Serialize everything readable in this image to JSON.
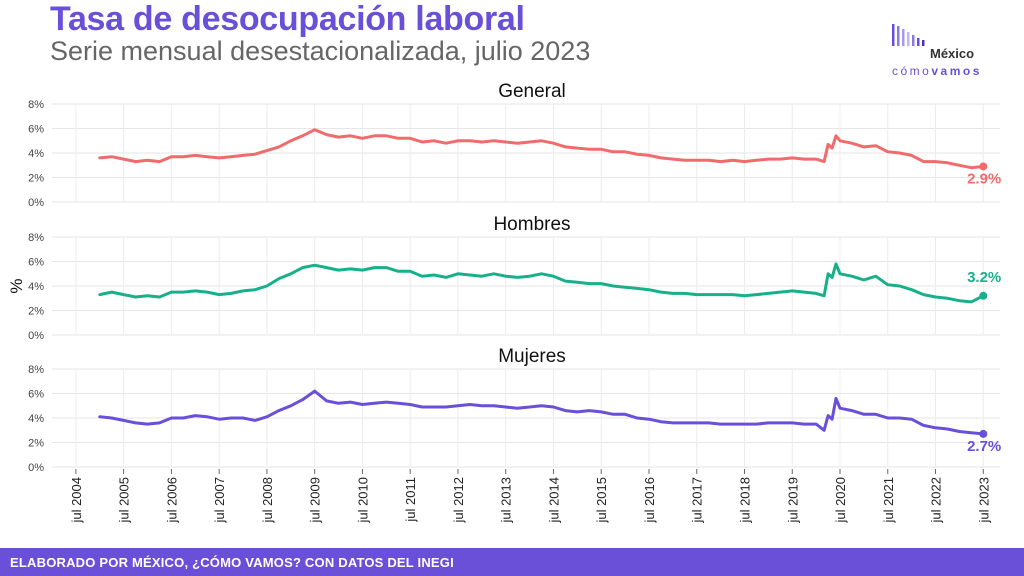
{
  "header": {
    "title": "Tasa de desocupación laboral",
    "subtitle": "Serie mensual desestacionalizada, julio 2023"
  },
  "logo": {
    "line1": "México",
    "line2a": "cómo",
    "line2b": "vamos"
  },
  "footer": {
    "text": "ELABORADO POR MÉXICO, ¿CÓMO VAMOS? CON DATOS DEL INEGI"
  },
  "chart_data": {
    "type": "line",
    "ylabel": "%",
    "x_ticks": [
      "jul 2004",
      "jul 2005",
      "jul 2006",
      "jul 2007",
      "jul 2008",
      "jul 2009",
      "jul 2010",
      "jul 2011",
      "jul 2012",
      "jul 2013",
      "jul 2014",
      "jul 2015",
      "jul 2016",
      "jul 2017",
      "jul 2018",
      "jul 2019",
      "jul 2020",
      "jul 2021",
      "jul 2022",
      "jul 2023"
    ],
    "y_ticks": [
      "0%",
      "2%",
      "4%",
      "6%",
      "8%"
    ],
    "ylim": [
      0,
      8
    ],
    "grid": true,
    "panels": [
      {
        "name": "General",
        "color": "#f06b6b",
        "end_label": "2.9%",
        "points": [
          [
            "2005-01",
            3.6
          ],
          [
            "2005-04",
            3.7
          ],
          [
            "2005-07",
            3.5
          ],
          [
            "2005-10",
            3.3
          ],
          [
            "2006-01",
            3.4
          ],
          [
            "2006-04",
            3.3
          ],
          [
            "2006-07",
            3.7
          ],
          [
            "2006-10",
            3.7
          ],
          [
            "2007-01",
            3.8
          ],
          [
            "2007-04",
            3.7
          ],
          [
            "2007-07",
            3.6
          ],
          [
            "2007-10",
            3.7
          ],
          [
            "2008-01",
            3.8
          ],
          [
            "2008-04",
            3.9
          ],
          [
            "2008-07",
            4.2
          ],
          [
            "2008-10",
            4.5
          ],
          [
            "2009-01",
            5.0
          ],
          [
            "2009-04",
            5.4
          ],
          [
            "2009-07",
            5.9
          ],
          [
            "2009-10",
            5.5
          ],
          [
            "2010-01",
            5.3
          ],
          [
            "2010-04",
            5.4
          ],
          [
            "2010-07",
            5.2
          ],
          [
            "2010-10",
            5.4
          ],
          [
            "2011-01",
            5.4
          ],
          [
            "2011-04",
            5.2
          ],
          [
            "2011-07",
            5.2
          ],
          [
            "2011-10",
            4.9
          ],
          [
            "2012-01",
            5.0
          ],
          [
            "2012-04",
            4.8
          ],
          [
            "2012-07",
            5.0
          ],
          [
            "2012-10",
            5.0
          ],
          [
            "2013-01",
            4.9
          ],
          [
            "2013-04",
            5.0
          ],
          [
            "2013-07",
            4.9
          ],
          [
            "2013-10",
            4.8
          ],
          [
            "2014-01",
            4.9
          ],
          [
            "2014-04",
            5.0
          ],
          [
            "2014-07",
            4.8
          ],
          [
            "2014-10",
            4.5
          ],
          [
            "2015-01",
            4.4
          ],
          [
            "2015-04",
            4.3
          ],
          [
            "2015-07",
            4.3
          ],
          [
            "2015-10",
            4.1
          ],
          [
            "2016-01",
            4.1
          ],
          [
            "2016-04",
            3.9
          ],
          [
            "2016-07",
            3.8
          ],
          [
            "2016-10",
            3.6
          ],
          [
            "2017-01",
            3.5
          ],
          [
            "2017-04",
            3.4
          ],
          [
            "2017-07",
            3.4
          ],
          [
            "2017-10",
            3.4
          ],
          [
            "2018-01",
            3.3
          ],
          [
            "2018-04",
            3.4
          ],
          [
            "2018-07",
            3.3
          ],
          [
            "2018-10",
            3.4
          ],
          [
            "2019-01",
            3.5
          ],
          [
            "2019-04",
            3.5
          ],
          [
            "2019-07",
            3.6
          ],
          [
            "2019-10",
            3.5
          ],
          [
            "2020-01",
            3.5
          ],
          [
            "2020-03",
            3.3
          ],
          [
            "2020-04",
            4.7
          ],
          [
            "2020-05",
            4.4
          ],
          [
            "2020-06",
            5.4
          ],
          [
            "2020-07",
            5.0
          ],
          [
            "2020-10",
            4.8
          ],
          [
            "2021-01",
            4.5
          ],
          [
            "2021-04",
            4.6
          ],
          [
            "2021-07",
            4.1
          ],
          [
            "2021-10",
            4.0
          ],
          [
            "2022-01",
            3.8
          ],
          [
            "2022-04",
            3.3
          ],
          [
            "2022-07",
            3.3
          ],
          [
            "2022-10",
            3.2
          ],
          [
            "2023-01",
            3.0
          ],
          [
            "2023-04",
            2.8
          ],
          [
            "2023-07",
            2.9
          ]
        ]
      },
      {
        "name": "Hombres",
        "color": "#17b08a",
        "end_label": "3.2%",
        "points": [
          [
            "2005-01",
            3.3
          ],
          [
            "2005-04",
            3.5
          ],
          [
            "2005-07",
            3.3
          ],
          [
            "2005-10",
            3.1
          ],
          [
            "2006-01",
            3.2
          ],
          [
            "2006-04",
            3.1
          ],
          [
            "2006-07",
            3.5
          ],
          [
            "2006-10",
            3.5
          ],
          [
            "2007-01",
            3.6
          ],
          [
            "2007-04",
            3.5
          ],
          [
            "2007-07",
            3.3
          ],
          [
            "2007-10",
            3.4
          ],
          [
            "2008-01",
            3.6
          ],
          [
            "2008-04",
            3.7
          ],
          [
            "2008-07",
            4.0
          ],
          [
            "2008-10",
            4.6
          ],
          [
            "2009-01",
            5.0
          ],
          [
            "2009-04",
            5.5
          ],
          [
            "2009-07",
            5.7
          ],
          [
            "2009-10",
            5.5
          ],
          [
            "2010-01",
            5.3
          ],
          [
            "2010-04",
            5.4
          ],
          [
            "2010-07",
            5.3
          ],
          [
            "2010-10",
            5.5
          ],
          [
            "2011-01",
            5.5
          ],
          [
            "2011-04",
            5.2
          ],
          [
            "2011-07",
            5.2
          ],
          [
            "2011-10",
            4.8
          ],
          [
            "2012-01",
            4.9
          ],
          [
            "2012-04",
            4.7
          ],
          [
            "2012-07",
            5.0
          ],
          [
            "2012-10",
            4.9
          ],
          [
            "2013-01",
            4.8
          ],
          [
            "2013-04",
            5.0
          ],
          [
            "2013-07",
            4.8
          ],
          [
            "2013-10",
            4.7
          ],
          [
            "2014-01",
            4.8
          ],
          [
            "2014-04",
            5.0
          ],
          [
            "2014-07",
            4.8
          ],
          [
            "2014-10",
            4.4
          ],
          [
            "2015-01",
            4.3
          ],
          [
            "2015-04",
            4.2
          ],
          [
            "2015-07",
            4.2
          ],
          [
            "2015-10",
            4.0
          ],
          [
            "2016-01",
            3.9
          ],
          [
            "2016-04",
            3.8
          ],
          [
            "2016-07",
            3.7
          ],
          [
            "2016-10",
            3.5
          ],
          [
            "2017-01",
            3.4
          ],
          [
            "2017-04",
            3.4
          ],
          [
            "2017-07",
            3.3
          ],
          [
            "2017-10",
            3.3
          ],
          [
            "2018-01",
            3.3
          ],
          [
            "2018-04",
            3.3
          ],
          [
            "2018-07",
            3.2
          ],
          [
            "2018-10",
            3.3
          ],
          [
            "2019-01",
            3.4
          ],
          [
            "2019-04",
            3.5
          ],
          [
            "2019-07",
            3.6
          ],
          [
            "2019-10",
            3.5
          ],
          [
            "2020-01",
            3.4
          ],
          [
            "2020-03",
            3.2
          ],
          [
            "2020-04",
            5.0
          ],
          [
            "2020-05",
            4.7
          ],
          [
            "2020-06",
            5.8
          ],
          [
            "2020-07",
            5.0
          ],
          [
            "2020-10",
            4.8
          ],
          [
            "2021-01",
            4.5
          ],
          [
            "2021-04",
            4.8
          ],
          [
            "2021-07",
            4.1
          ],
          [
            "2021-10",
            4.0
          ],
          [
            "2022-01",
            3.7
          ],
          [
            "2022-04",
            3.3
          ],
          [
            "2022-07",
            3.1
          ],
          [
            "2022-10",
            3.0
          ],
          [
            "2023-01",
            2.8
          ],
          [
            "2023-04",
            2.7
          ],
          [
            "2023-07",
            3.2
          ]
        ]
      },
      {
        "name": "Mujeres",
        "color": "#6a4fd8",
        "end_label": "2.7%",
        "points": [
          [
            "2005-01",
            4.1
          ],
          [
            "2005-04",
            4.0
          ],
          [
            "2005-07",
            3.8
          ],
          [
            "2005-10",
            3.6
          ],
          [
            "2006-01",
            3.5
          ],
          [
            "2006-04",
            3.6
          ],
          [
            "2006-07",
            4.0
          ],
          [
            "2006-10",
            4.0
          ],
          [
            "2007-01",
            4.2
          ],
          [
            "2007-04",
            4.1
          ],
          [
            "2007-07",
            3.9
          ],
          [
            "2007-10",
            4.0
          ],
          [
            "2008-01",
            4.0
          ],
          [
            "2008-04",
            3.8
          ],
          [
            "2008-07",
            4.1
          ],
          [
            "2008-10",
            4.6
          ],
          [
            "2009-01",
            5.0
          ],
          [
            "2009-04",
            5.5
          ],
          [
            "2009-07",
            6.2
          ],
          [
            "2009-10",
            5.4
          ],
          [
            "2010-01",
            5.2
          ],
          [
            "2010-04",
            5.3
          ],
          [
            "2010-07",
            5.1
          ],
          [
            "2010-10",
            5.2
          ],
          [
            "2011-01",
            5.3
          ],
          [
            "2011-04",
            5.2
          ],
          [
            "2011-07",
            5.1
          ],
          [
            "2011-10",
            4.9
          ],
          [
            "2012-01",
            4.9
          ],
          [
            "2012-04",
            4.9
          ],
          [
            "2012-07",
            5.0
          ],
          [
            "2012-10",
            5.1
          ],
          [
            "2013-01",
            5.0
          ],
          [
            "2013-04",
            5.0
          ],
          [
            "2013-07",
            4.9
          ],
          [
            "2013-10",
            4.8
          ],
          [
            "2014-01",
            4.9
          ],
          [
            "2014-04",
            5.0
          ],
          [
            "2014-07",
            4.9
          ],
          [
            "2014-10",
            4.6
          ],
          [
            "2015-01",
            4.5
          ],
          [
            "2015-04",
            4.6
          ],
          [
            "2015-07",
            4.5
          ],
          [
            "2015-10",
            4.3
          ],
          [
            "2016-01",
            4.3
          ],
          [
            "2016-04",
            4.0
          ],
          [
            "2016-07",
            3.9
          ],
          [
            "2016-10",
            3.7
          ],
          [
            "2017-01",
            3.6
          ],
          [
            "2017-04",
            3.6
          ],
          [
            "2017-07",
            3.6
          ],
          [
            "2017-10",
            3.6
          ],
          [
            "2018-01",
            3.5
          ],
          [
            "2018-04",
            3.5
          ],
          [
            "2018-07",
            3.5
          ],
          [
            "2018-10",
            3.5
          ],
          [
            "2019-01",
            3.6
          ],
          [
            "2019-04",
            3.6
          ],
          [
            "2019-07",
            3.6
          ],
          [
            "2019-10",
            3.5
          ],
          [
            "2020-01",
            3.5
          ],
          [
            "2020-03",
            3.0
          ],
          [
            "2020-04",
            4.2
          ],
          [
            "2020-05",
            3.9
          ],
          [
            "2020-06",
            5.6
          ],
          [
            "2020-07",
            4.8
          ],
          [
            "2020-10",
            4.6
          ],
          [
            "2021-01",
            4.3
          ],
          [
            "2021-04",
            4.3
          ],
          [
            "2021-07",
            4.0
          ],
          [
            "2021-10",
            4.0
          ],
          [
            "2022-01",
            3.9
          ],
          [
            "2022-04",
            3.4
          ],
          [
            "2022-07",
            3.2
          ],
          [
            "2022-10",
            3.1
          ],
          [
            "2023-01",
            2.9
          ],
          [
            "2023-04",
            2.8
          ],
          [
            "2023-07",
            2.7
          ]
        ]
      }
    ]
  }
}
